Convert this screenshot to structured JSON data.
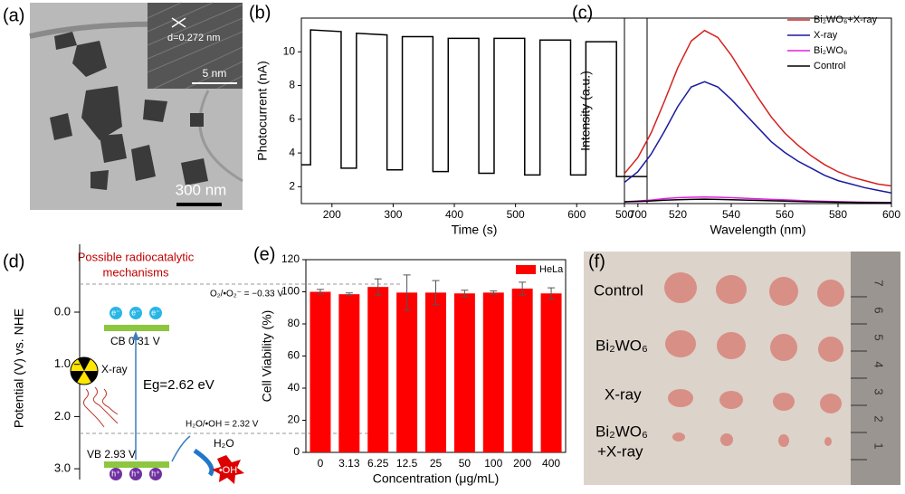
{
  "chart_data": [
    {
      "type": "line",
      "label": "(b)",
      "x_label": "Time (s)",
      "y_label": "Photocurrent (nA)",
      "x": [
        150,
        165,
        165,
        215,
        215,
        240,
        240,
        290,
        290,
        315,
        315,
        365,
        365,
        390,
        390,
        440,
        440,
        465,
        465,
        515,
        515,
        540,
        540,
        590,
        590,
        615,
        615,
        665,
        665,
        715
      ],
      "series": [
        {
          "color": "#000000",
          "values": [
            3.3,
            3.3,
            11.3,
            11.2,
            3.1,
            3.1,
            11.1,
            11.0,
            3.0,
            3.0,
            10.9,
            10.9,
            2.9,
            2.9,
            10.8,
            10.8,
            2.8,
            2.8,
            10.8,
            10.8,
            2.7,
            2.7,
            10.7,
            10.7,
            2.7,
            2.7,
            10.6,
            10.6,
            2.6,
            2.6
          ]
        }
      ],
      "xlim": [
        150,
        715
      ],
      "xticks": [
        200,
        300,
        400,
        500,
        600,
        700
      ],
      "ylim": [
        1,
        12
      ],
      "yticks": [
        2,
        4,
        6,
        8,
        10
      ]
    },
    {
      "type": "line",
      "label": "(c)",
      "x_label": "Wavelength (nm)",
      "y_label": "Intensity (a.u.)",
      "x": [
        500,
        505,
        510,
        515,
        520,
        525,
        530,
        535,
        540,
        545,
        550,
        555,
        560,
        565,
        570,
        575,
        580,
        585,
        590,
        595,
        600
      ],
      "series": [
        {
          "name": "Bi₂WO₆+X-ray",
          "color": "#d42020",
          "values": [
            17,
            26,
            40,
            58,
            77,
            92,
            98,
            94,
            84,
            72,
            60,
            49,
            40,
            33,
            27,
            22,
            18,
            15,
            13,
            11,
            10
          ]
        },
        {
          "name": "X-ray",
          "color": "#1a1aa0",
          "values": [
            12,
            18,
            28,
            41,
            55,
            66,
            69,
            66,
            59,
            51,
            43,
            35,
            29,
            24,
            20,
            16,
            13,
            11,
            9,
            7.5,
            6
          ]
        },
        {
          "name": "Bi₂WO₆",
          "color": "#e020e0",
          "values": [
            1,
            1.5,
            2,
            2.8,
            3.3,
            3.6,
            3.7,
            3.6,
            3.3,
            3,
            2.7,
            2.4,
            2.1,
            1.8,
            1.5,
            1.3,
            1.1,
            0.9,
            0.8,
            0.7,
            0.6
          ]
        },
        {
          "name": "Control",
          "color": "#000000",
          "values": [
            1,
            1.2,
            1.5,
            1.9,
            2.2,
            2.4,
            2.5,
            2.4,
            2.2,
            2,
            1.8,
            1.6,
            1.4,
            1.2,
            1,
            0.9,
            0.8,
            0.7,
            0.6,
            0.5,
            0.5
          ]
        }
      ],
      "xlim": [
        500,
        600
      ],
      "xticks": [
        500,
        520,
        540,
        560,
        580,
        600
      ],
      "ylim": [
        0,
        105
      ],
      "legend": "upper right"
    },
    {
      "type": "bar",
      "label": "(e)",
      "x_label": "Concentration (μg/mL)",
      "y_label": "Cell Viability (%)",
      "categories": [
        "0",
        "3.13",
        "6.25",
        "12.5",
        "25",
        "50",
        "100",
        "200",
        "400"
      ],
      "series": [
        {
          "name": "HeLa",
          "color": "#ff0000",
          "values": [
            100,
            98.5,
            103,
            99.5,
            99.5,
            99,
            99.5,
            102,
            99
          ],
          "errors": [
            1.5,
            0.8,
            5,
            11,
            7.5,
            2,
            1,
            4,
            3.5
          ]
        }
      ],
      "ylim": [
        0,
        120
      ],
      "yticks": [
        0,
        20,
        40,
        60,
        80,
        100,
        120
      ],
      "legend": "upper right"
    }
  ],
  "panel_a": {
    "label": "(a)",
    "lattice": "d=0.272 nm",
    "inset_scale": "5 nm",
    "scale": "300 nm"
  },
  "panel_d": {
    "label": "(d)",
    "title": [
      "Possible radiocatalytic",
      "mechanisms"
    ],
    "y_label": "Potential (V) vs. NHE",
    "yticks": [
      {
        "value": 0,
        "label": "0.0"
      },
      {
        "value": 1,
        "label": "1.0"
      },
      {
        "value": 2,
        "label": "2.0"
      },
      {
        "value": 3,
        "label": "3.0"
      }
    ],
    "o2_level": "O₂/•O₂⁻ = −0.33 V",
    "cb": "CB 0.31 V",
    "xray": "X-ray",
    "gap": "Eg=2.62 eV",
    "oh_level": "H₂O/•OH = 2.32 V",
    "water": "H₂O",
    "vb": "VB 2.93 V",
    "radical": "•OH",
    "electron": "e⁻",
    "hole": "h⁺"
  },
  "panel_f": {
    "label": "(f)",
    "rows": [
      "Control",
      "Bi₂WO₆",
      "X-ray",
      "Bi₂WO₆",
      "+X-ray"
    ],
    "ruler": [
      "1",
      "2",
      "3",
      "4",
      "5",
      "6",
      "7"
    ]
  }
}
